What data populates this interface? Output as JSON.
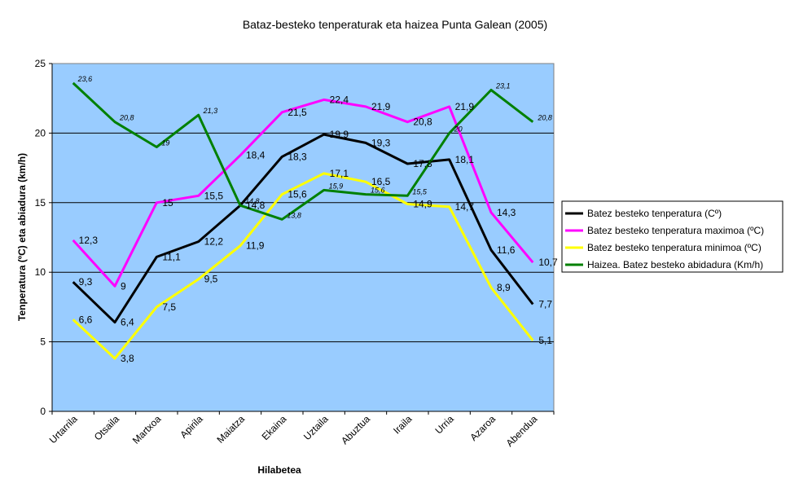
{
  "chart_data": {
    "type": "line",
    "title": "Bataz-besteko tenperaturak eta haizea Punta Galean (2005)",
    "xlabel": "Hilabetea",
    "ylabel": "Tenperatura (ºC)  eta abiadura (km/h)",
    "ylim": [
      0,
      25
    ],
    "yticks": [
      0,
      5,
      10,
      15,
      20,
      25
    ],
    "grid": true,
    "legend_position": "right",
    "plot_background": "#99ccff",
    "categories": [
      "Urtarrila",
      "Otsaila",
      "Martxoa",
      "Apirila",
      "Maiatza",
      "Ekaina",
      "Uztaila",
      "Abuztua",
      "Iraila",
      "Urria",
      "Azaroa",
      "Abendua"
    ],
    "series": [
      {
        "name": "Batez besteko tenperatura (Cº)",
        "color": "#000000",
        "values": [
          9.3,
          6.4,
          11.1,
          12.2,
          14.8,
          18.3,
          19.9,
          19.3,
          17.8,
          18.1,
          11.6,
          7.7
        ],
        "labels": [
          "9,3",
          "6,4",
          "11,1",
          "12,2",
          "14,8",
          "18,3",
          "19,9",
          "19,3",
          "17,8",
          "18,1",
          "11,6",
          "7,7"
        ]
      },
      {
        "name": "Batez besteko tenperatura maximoa (ºC)",
        "color": "#ff00ff",
        "values": [
          12.3,
          9,
          15,
          15.5,
          18.4,
          21.5,
          22.4,
          21.9,
          20.8,
          21.9,
          14.3,
          10.7
        ],
        "labels": [
          "12,3",
          "9",
          "15",
          "15,5",
          "18,4",
          "21,5",
          "22,4",
          "21,9",
          "20,8",
          "21,9",
          "14,3",
          "10,7"
        ]
      },
      {
        "name": "Batez besteko tenperatura minimoa (ºC)",
        "color": "#ffff00",
        "values": [
          6.6,
          3.8,
          7.5,
          9.5,
          11.9,
          15.6,
          17.1,
          16.5,
          14.9,
          14.7,
          8.9,
          5.1
        ],
        "labels": [
          "6,6",
          "3,8",
          "7,5",
          "9,5",
          "11,9",
          "15,6",
          "17,1",
          "16,5",
          "14,9",
          "14,7",
          "8,9",
          "5,1"
        ]
      },
      {
        "name": "Haizea. Batez besteko abidadura (Km/h)",
        "color": "#008000",
        "values": [
          23.6,
          20.8,
          19,
          21.3,
          14.8,
          13.8,
          15.9,
          15.6,
          15.5,
          20,
          23.1,
          20.8
        ],
        "labels": [
          "23,6",
          "20,8",
          "19",
          "21,3",
          "14,8",
          "13,8",
          "15,9",
          "15,6",
          "15,5",
          "20",
          "23,1",
          "20,8"
        ]
      }
    ]
  }
}
